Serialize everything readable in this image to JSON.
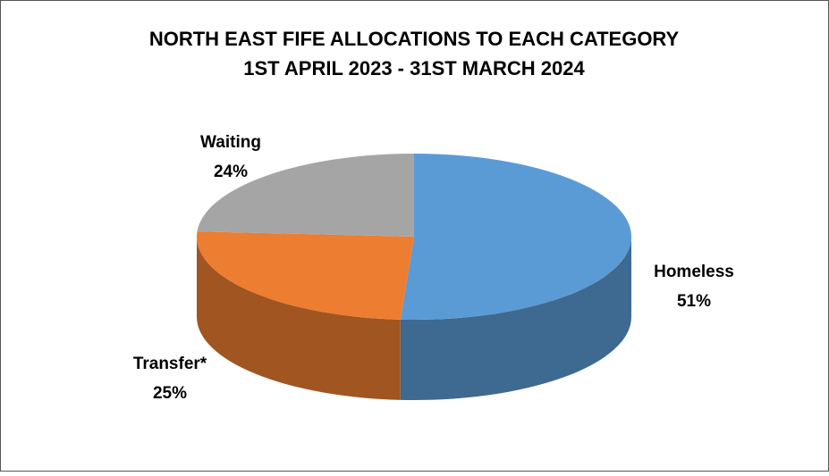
{
  "chart_data": {
    "type": "pie",
    "title": "NORTH EAST FIFE ALLOCATIONS TO EACH CATEGORY",
    "subtitle": "1ST APRIL 2023 - 31ST MARCH 2024",
    "categories": [
      "Homeless",
      "Transfer*",
      "Waiting"
    ],
    "values": [
      51,
      25,
      24
    ],
    "value_labels": [
      "51%",
      "25%",
      "24%"
    ],
    "colors": [
      "#5b9bd5",
      "#ed7d31",
      "#a5a5a5"
    ]
  }
}
